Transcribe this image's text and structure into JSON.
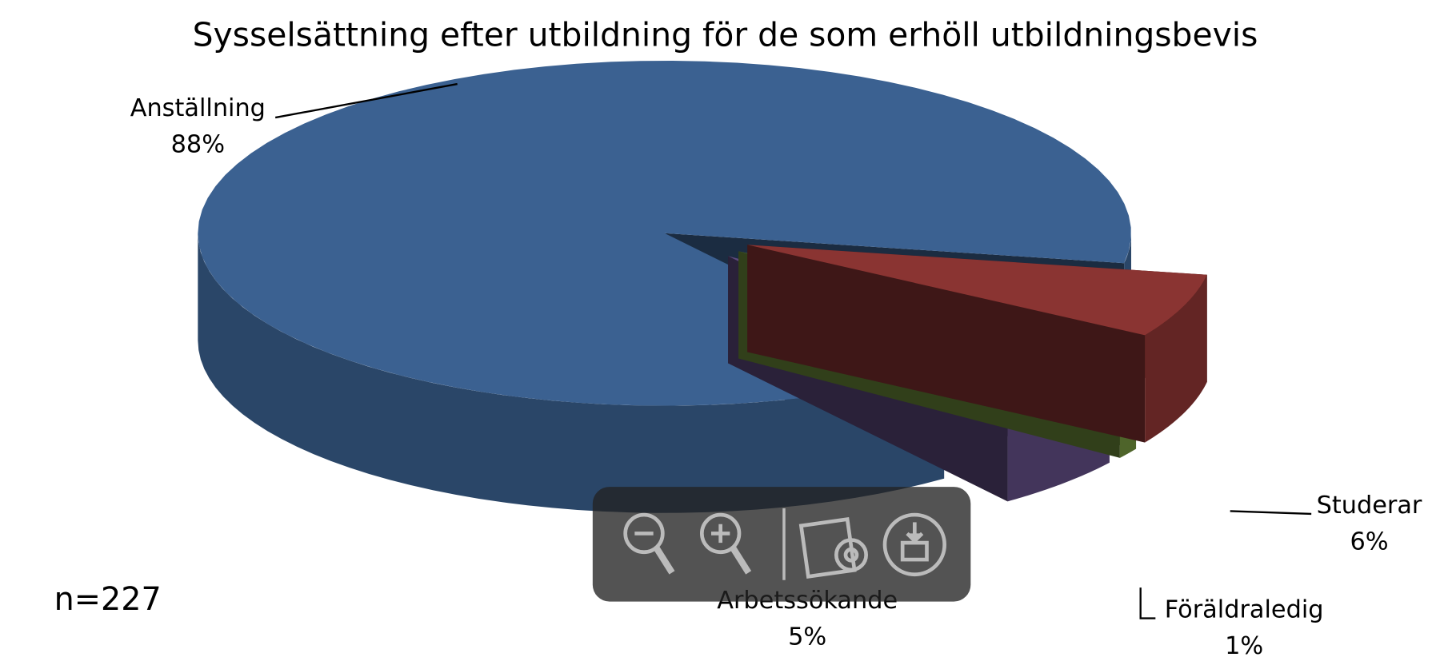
{
  "chart_data": {
    "type": "pie3d",
    "title": "Sysselsättning efter utbildning för de som erhöll utbildningsbevis",
    "annotation": "n=227",
    "categories": [
      "Anställning",
      "Studerar",
      "Föräldraledig",
      "Arbetssökande"
    ],
    "values": [
      88,
      6,
      1,
      5
    ],
    "value_labels": [
      "88%",
      "6%",
      "1%",
      "5%"
    ],
    "colors": [
      "#3b6191",
      "#8a3432",
      "#6d8b3a",
      "#5d4a7e"
    ]
  }
}
